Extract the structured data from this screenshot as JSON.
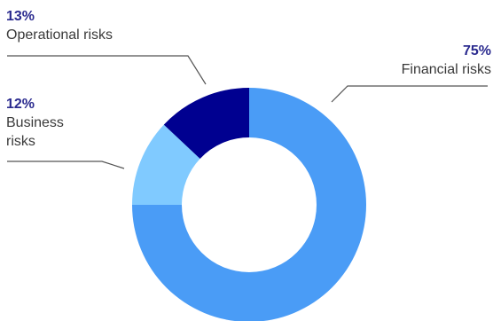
{
  "chart_data": {
    "type": "pie",
    "title": "",
    "slices": [
      {
        "label": "Financial risks",
        "value": 75,
        "value_label": "75%",
        "color": "#4a9cf6"
      },
      {
        "label": "Business risks",
        "value": 12,
        "value_label": "12%",
        "color": "#80caff"
      },
      {
        "label": "Operational risks",
        "value": 13,
        "value_label": "13%",
        "color": "#000090"
      }
    ],
    "legend": "none"
  }
}
